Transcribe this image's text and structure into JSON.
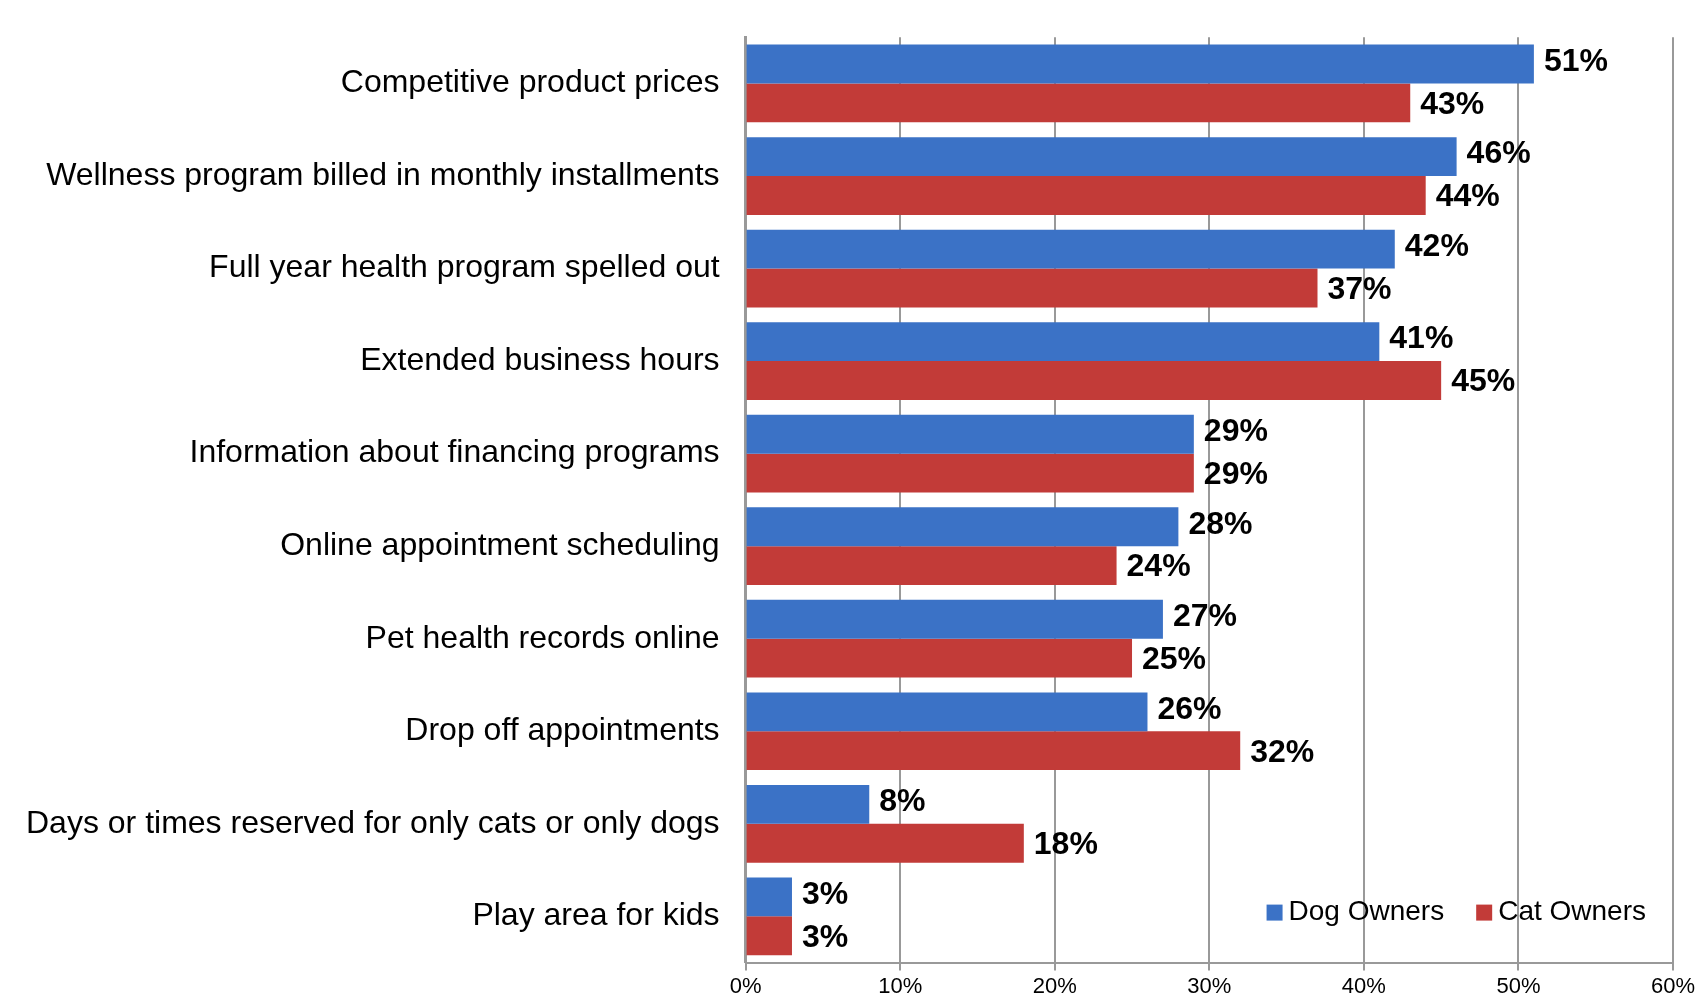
{
  "chart_data": {
    "type": "bar",
    "orientation": "horizontal",
    "categories": [
      "Competitive product prices",
      "Wellness program billed in monthly installments",
      "Full year health program spelled out",
      "Extended business hours",
      "Information about financing programs",
      "Online appointment scheduling",
      "Pet health records online",
      "Drop off appointments",
      "Days or times reserved for only cats or only dogs",
      "Play area for kids"
    ],
    "series": [
      {
        "name": "Dog Owners",
        "color": "#3b72c6",
        "values": [
          51,
          46,
          42,
          41,
          29,
          28,
          27,
          26,
          8,
          3
        ],
        "value_labels": [
          "51%",
          "46%",
          "42%",
          "41%",
          "29%",
          "28%",
          "27%",
          "26%",
          "8%",
          "3%"
        ]
      },
      {
        "name": "Cat Owners",
        "color": "#c23b38",
        "values": [
          43,
          44,
          37,
          45,
          29,
          24,
          25,
          32,
          18,
          3
        ],
        "value_labels": [
          "43%",
          "44%",
          "37%",
          "45%",
          "29%",
          "24%",
          "25%",
          "32%",
          "18%",
          "3%"
        ]
      }
    ],
    "xlim": [
      0,
      60
    ],
    "xticks": [
      {
        "value": 0,
        "label": "0%"
      },
      {
        "value": 10,
        "label": "10%"
      },
      {
        "value": 20,
        "label": "20%"
      },
      {
        "value": 30,
        "label": "30%"
      },
      {
        "value": 40,
        "label": "40%"
      },
      {
        "value": 50,
        "label": "50%"
      },
      {
        "value": 60,
        "label": "60%"
      }
    ],
    "grid": "x",
    "legend": "bottom right"
  }
}
